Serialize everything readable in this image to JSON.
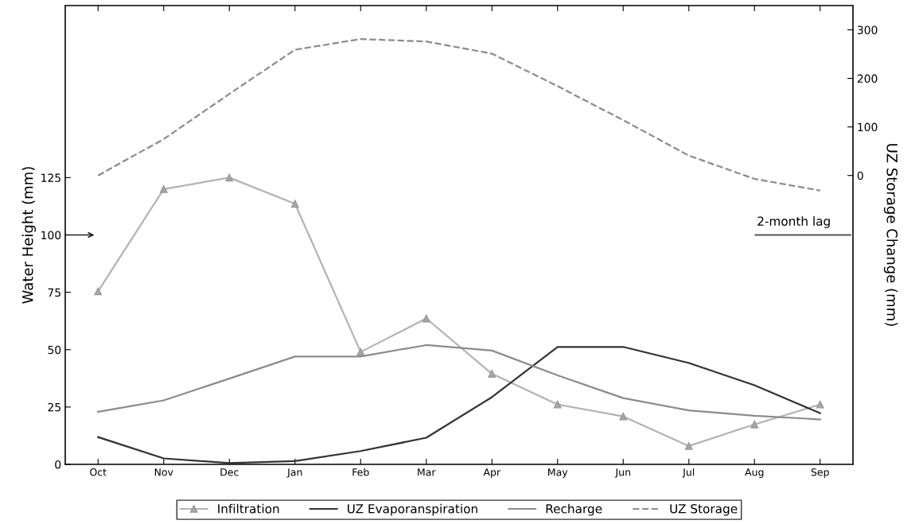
{
  "chart_data": {
    "type": "line",
    "ylabel": "Water Height (mm)",
    "y2label": "UZ Storage Change (mm)",
    "categories": [
      "Oct",
      "Nov",
      "Dec",
      "Jan",
      "Feb",
      "Mar",
      "Apr",
      "May",
      "Jun",
      "Jul",
      "Aug",
      "Sep"
    ],
    "series": [
      {
        "name": "Infiltration",
        "color": "#b3b3b3",
        "marker": "triangle",
        "line_style": "solid",
        "values": [
          75.4,
          120,
          125,
          113.6,
          49,
          63.6,
          39.5,
          26.1,
          20.9,
          8,
          17.4,
          26.1
        ]
      },
      {
        "name": "UZ Evaporanspiration",
        "color": "#333333",
        "line_style": "solid",
        "values": [
          11.9,
          2.6,
          0.6,
          1.4,
          5.8,
          11.6,
          29.3,
          51.2,
          51.2,
          44.2,
          34.5,
          22.3
        ]
      },
      {
        "name": "Recharge",
        "color": "#8c8c8c",
        "line_style": "solid",
        "values": [
          22.9,
          27.9,
          37.4,
          47,
          47,
          52,
          49.6,
          38.8,
          28.9,
          23.5,
          21.2,
          19.6
        ]
      },
      {
        "name": "UZ Storage",
        "color": "#8c8c8c",
        "line_style": "dashed",
        "axis": "y2",
        "values": [
          0,
          75,
          168,
          259,
          281,
          276,
          251,
          184,
          114,
          41,
          -7,
          -31
        ]
      }
    ],
    "ylim": [
      0,
      200
    ],
    "yticks": [
      0,
      25,
      50,
      75,
      100,
      125
    ],
    "y2lim": [
      -595,
      350
    ],
    "y2ticks": [
      0,
      100,
      200,
      300
    ],
    "annotations": [
      "2-month lag"
    ],
    "grid": false,
    "legend": "bottom"
  }
}
